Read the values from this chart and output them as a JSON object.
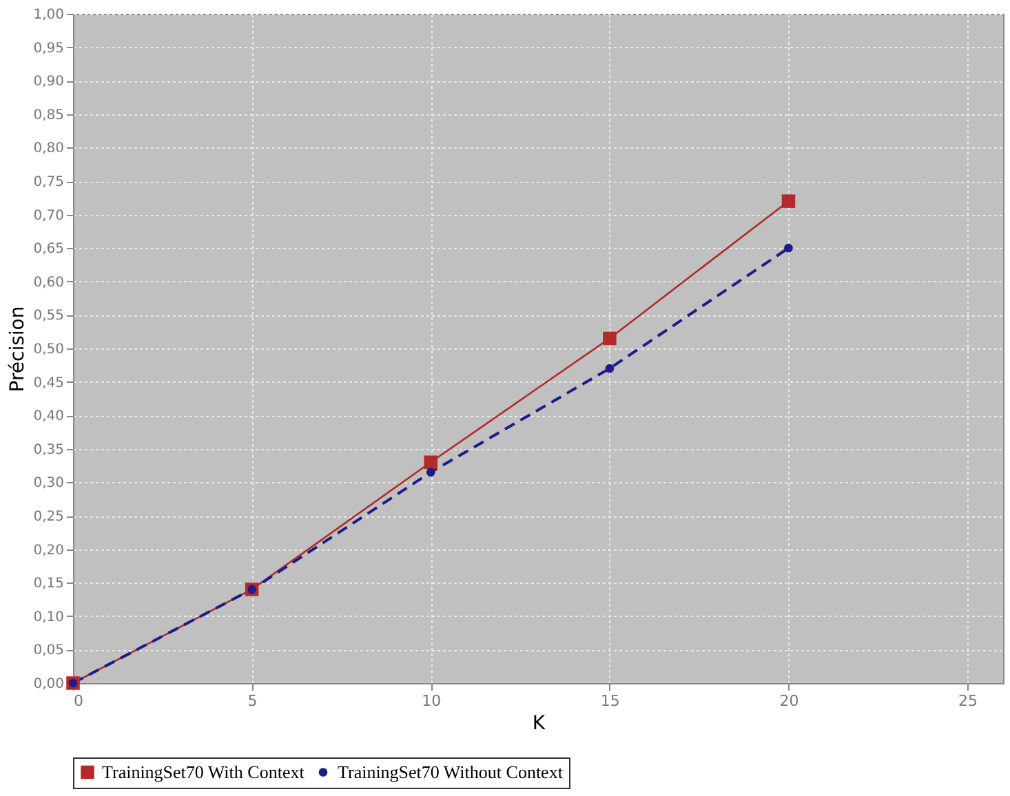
{
  "chart_data": {
    "type": "line",
    "xlabel": "K",
    "ylabel": "Précision",
    "x": [
      0,
      5,
      10,
      15,
      20
    ],
    "series": [
      {
        "name": "TrainingSet70 With Context",
        "color": "#b22a2a",
        "values": [
          0,
          0.14,
          0.33,
          0.515,
          0.72
        ],
        "marker": "square",
        "line_style": "solid"
      },
      {
        "name": "TrainingSet70 Without Context",
        "color": "#1c1c8a",
        "values": [
          0,
          0.14,
          0.315,
          0.47,
          0.65
        ],
        "marker": "circle",
        "line_style": "dashed"
      }
    ],
    "xlim": [
      0,
      26
    ],
    "xticks": [
      0,
      5,
      10,
      15,
      20,
      25
    ],
    "ylim": [
      0,
      1
    ],
    "yticks": [
      {
        "value": 0,
        "label": "0,00"
      },
      {
        "value": 0.05,
        "label": "0,05"
      },
      {
        "value": 0.1,
        "label": "0,10"
      },
      {
        "value": 0.15,
        "label": "0,15"
      },
      {
        "value": 0.2,
        "label": "0,20"
      },
      {
        "value": 0.25,
        "label": "0,25"
      },
      {
        "value": 0.3,
        "label": "0,30"
      },
      {
        "value": 0.35,
        "label": "0,35"
      },
      {
        "value": 0.4,
        "label": "0,40"
      },
      {
        "value": 0.45,
        "label": "0,45"
      },
      {
        "value": 0.5,
        "label": "0,50"
      },
      {
        "value": 0.55,
        "label": "0,55"
      },
      {
        "value": 0.6,
        "label": "0,60"
      },
      {
        "value": 0.65,
        "label": "0,65"
      },
      {
        "value": 0.7,
        "label": "0,70"
      },
      {
        "value": 0.75,
        "label": "0,75"
      },
      {
        "value": 0.8,
        "label": "0,80"
      },
      {
        "value": 0.85,
        "label": "0,85"
      },
      {
        "value": 0.9,
        "label": "0,90"
      },
      {
        "value": 0.95,
        "label": "0,95"
      },
      {
        "value": 1,
        "label": "1,00"
      }
    ],
    "grid": true,
    "legend": "bottom"
  }
}
